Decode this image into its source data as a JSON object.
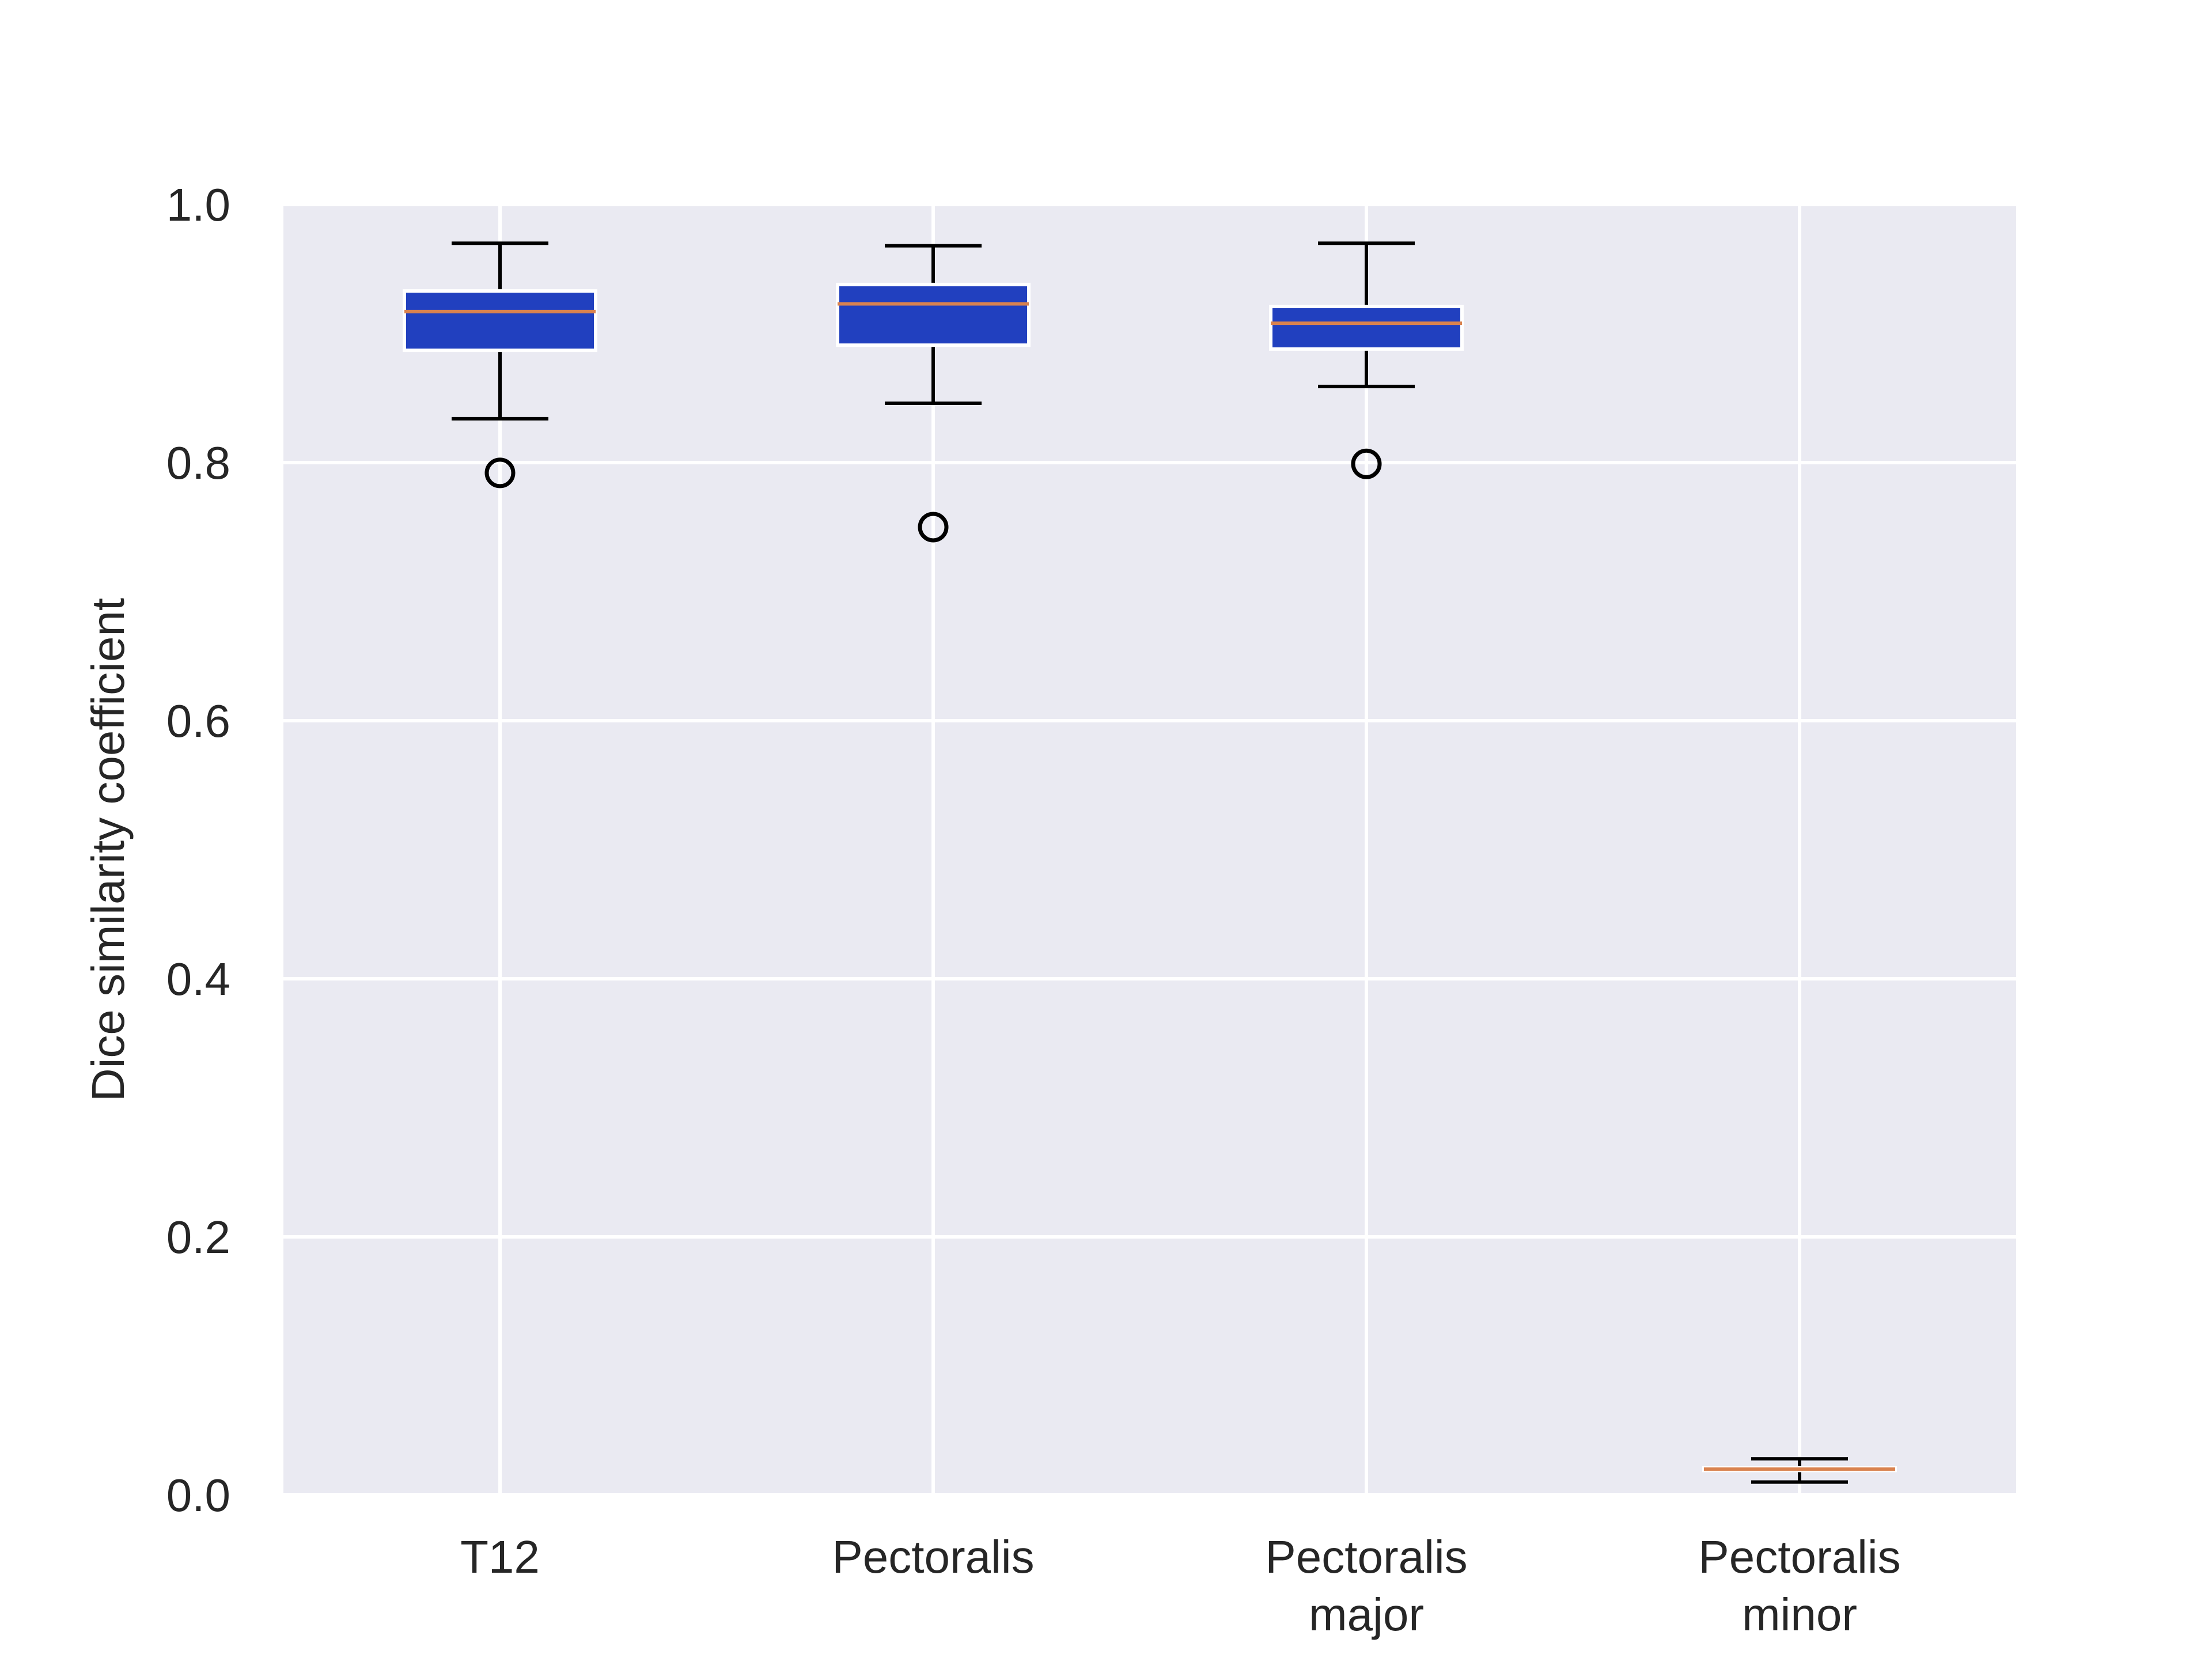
{
  "chart_data": {
    "type": "box",
    "title": "",
    "xlabel": "",
    "ylabel": "Dice similarity coefficient",
    "ylim": [
      0.0,
      1.0
    ],
    "yticks": [
      "0.0",
      "0.2",
      "0.4",
      "0.6",
      "0.8",
      "1.0"
    ],
    "grid": true,
    "categories": [
      [
        "T12"
      ],
      [
        "Pectoralis"
      ],
      [
        "Pectoralis",
        "major"
      ],
      [
        "Pectoralis",
        "minor"
      ]
    ],
    "boxes": [
      {
        "whisker_low": 0.834,
        "q1": 0.887,
        "median": 0.917,
        "q3": 0.933,
        "whisker_high": 0.97,
        "outliers": [
          0.792
        ]
      },
      {
        "whisker_low": 0.846,
        "q1": 0.891,
        "median": 0.923,
        "q3": 0.938,
        "whisker_high": 0.968,
        "outliers": [
          0.75
        ]
      },
      {
        "whisker_low": 0.859,
        "q1": 0.888,
        "median": 0.908,
        "q3": 0.921,
        "whisker_high": 0.97,
        "outliers": [
          0.799
        ]
      },
      {
        "whisker_low": 0.01,
        "q1": 0.019,
        "median": 0.02,
        "q3": 0.021,
        "whisker_high": 0.028,
        "outliers": []
      }
    ],
    "colors": {
      "box_fill": "#2140bf",
      "box_edge": "#ffffff",
      "median": "#d9824f",
      "whisker": "#000000",
      "plot_background": "#eaeaf2",
      "grid": "#ffffff",
      "text": "#262626"
    }
  }
}
